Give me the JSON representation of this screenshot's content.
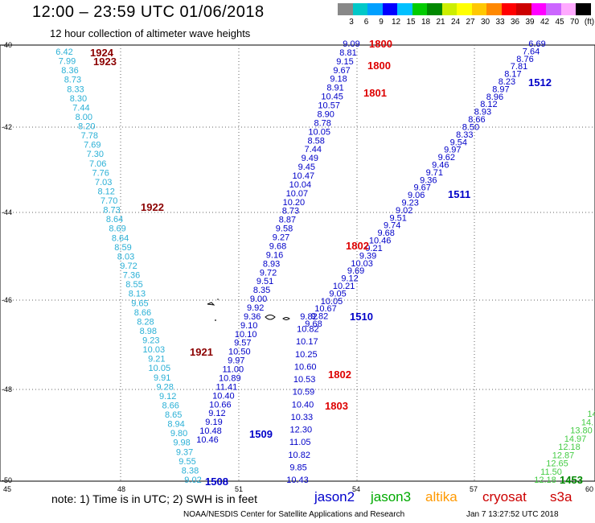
{
  "title": "12:00 – 23:59 UTC 01/06/2018",
  "subtitle": "12 hour collection of altimeter wave heights",
  "color_scale": {
    "labels": [
      "3",
      "6",
      "9",
      "12",
      "15",
      "18",
      "21",
      "24",
      "27",
      "30",
      "33",
      "36",
      "39",
      "42",
      "45",
      "70",
      "(ft)"
    ],
    "colors": [
      "#888888",
      "#00c8c8",
      "#00a0ff",
      "#0000ff",
      "#00c0ff",
      "#00cc00",
      "#008800",
      "#ccee00",
      "#ffff00",
      "#ffc800",
      "#ff8800",
      "#ff0000",
      "#cc0000",
      "#ff00ff",
      "#cc66ff",
      "#ffaaff",
      "#000000"
    ]
  },
  "axes": {
    "x_ticks": [
      "45",
      "48",
      "51",
      "54",
      "57",
      "60"
    ],
    "y_ticks": [
      "40",
      "42",
      "44",
      "46",
      "48",
      "50"
    ]
  },
  "tracks": [
    {
      "satellite": "cryosat s3a",
      "color": "#2ab0d6",
      "values": [
        "6.42",
        "7.99",
        "8.36",
        "8.73",
        "8.33",
        "8.30",
        "7.44",
        "8.00",
        "8.20",
        "7.78",
        "7.69",
        "7.30",
        "7.06",
        "7.76",
        "7.03",
        "8.12",
        "7.70",
        "8.73",
        "8.64",
        "8.69",
        "8.64",
        "8.59",
        "8.03",
        "9.72",
        "7.36",
        "8.55",
        "8.13",
        "9.65",
        "8.66",
        "8.28",
        "8.98",
        "9.23",
        "10.03",
        "9.21",
        "10.05",
        "9.91",
        "9.28",
        "9.12",
        "8.66",
        "8.65",
        "8.94",
        "9.80",
        "9.98",
        "9.37",
        "9.55",
        "8.38",
        "9.02"
      ]
    },
    {
      "satellite": "jason2",
      "color": "#0000c8",
      "values": [
        "9.09",
        "8.81",
        "9.15",
        "9.67",
        "9.18",
        "8.91",
        "10.45",
        "10.57",
        "8.90",
        "8.78",
        "10.05",
        "8.58",
        "7.44",
        "9.49",
        "9.45",
        "10.47",
        "10.04",
        "10.07",
        "10.20",
        "8.73",
        "8.87",
        "9.58",
        "9.27",
        "9.68",
        "9.16",
        "8.93",
        "9.72",
        "9.51",
        "8.35",
        "9.00",
        "9.92",
        "9.36",
        "9.10",
        "10.10",
        "9.57",
        "10.50",
        "9.97",
        "11.00",
        "10.89",
        "11.41",
        "10.40",
        "10.66",
        "9.12",
        "9.19",
        "10.48",
        "10.46"
      ]
    },
    {
      "satellite": "jason2",
      "color": "#0000c8",
      "values": [
        "9.82",
        "10.82",
        "10.17",
        "10.25",
        "10.60",
        "10.53",
        "10.59",
        "10.40",
        "10.33",
        "12.30",
        "11.05",
        "10.82",
        "9.85",
        "10.43"
      ]
    },
    {
      "satellite": "jason2",
      "color": "#0000c8",
      "values": [
        "6.69",
        "7.64",
        "8.76",
        "7.81",
        "8.17",
        "8.23",
        "8.97",
        "8.96",
        "8.12",
        "8.93",
        "8.66",
        "8.50",
        "8.33",
        "9.54",
        "9.97",
        "9.62",
        "9.46",
        "9.71",
        "9.36",
        "9.67",
        "9.06",
        "9.23",
        "9.02",
        "9.51",
        "9.74",
        "9.68",
        "10.46",
        "9.21",
        "9.39",
        "10.03",
        "9.69",
        "9.12",
        "10.21",
        "9.05",
        "10.05",
        "10.67",
        "9.82",
        "9.68"
      ]
    },
    {
      "satellite": "jason3",
      "color": "#44cc44",
      "values": [
        "14.",
        "14.",
        "13.80",
        "14.97",
        "12.18",
        "12.87",
        "12.65",
        "11.50",
        "12.18"
      ]
    }
  ],
  "time_labels": [
    {
      "text": "1924",
      "color": "#8b0000"
    },
    {
      "text": "1923",
      "color": "#8b0000"
    },
    {
      "text": "1922",
      "color": "#8b0000"
    },
    {
      "text": "1921",
      "color": "#8b0000"
    },
    {
      "text": "1800",
      "color": "#dd0000"
    },
    {
      "text": "1800",
      "color": "#dd0000"
    },
    {
      "text": "1801",
      "color": "#dd0000"
    },
    {
      "text": "1802",
      "color": "#dd0000"
    },
    {
      "text": "1802",
      "color": "#dd0000"
    },
    {
      "text": "1803",
      "color": "#dd0000"
    },
    {
      "text": "1512",
      "color": "#0000c8"
    },
    {
      "text": "1511",
      "color": "#0000c8"
    },
    {
      "text": "1510",
      "color": "#0000c8"
    },
    {
      "text": "1509",
      "color": "#0000c8"
    },
    {
      "text": "1508",
      "color": "#0000c8"
    },
    {
      "text": "1453",
      "color": "#008800"
    }
  ],
  "note": "note: 1) Time is in UTC; 2) SWH is in feet",
  "legend": [
    {
      "name": "jason2",
      "color": "#0000cc"
    },
    {
      "name": "jason3",
      "color": "#00aa00"
    },
    {
      "name": "altika",
      "color": "#ff9900"
    },
    {
      "name": "cryosat",
      "color": "#cc0000"
    },
    {
      "name": "s3a",
      "color": "#cc0000"
    }
  ],
  "credit": "NOAA/NESDIS Center for Satellite Applications and Research",
  "timestamp": "Jan  7 13:27:52 UTC 2018"
}
